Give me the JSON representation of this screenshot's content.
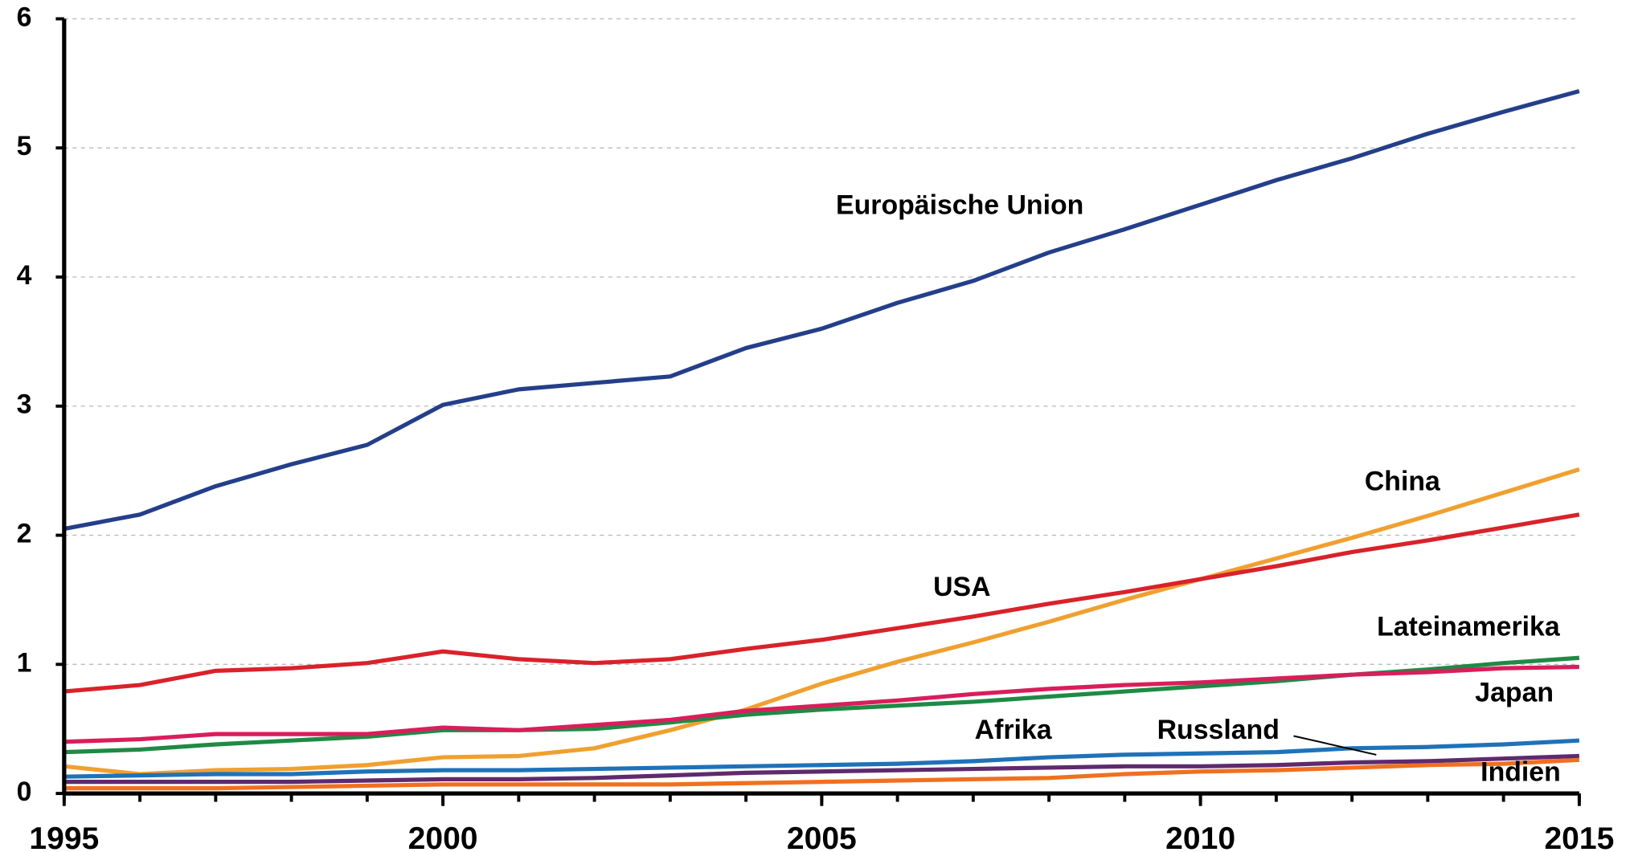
{
  "chart_data": {
    "type": "line",
    "x": [
      1995,
      1996,
      1997,
      1998,
      1999,
      2000,
      2001,
      2002,
      2003,
      2004,
      2005,
      2006,
      2007,
      2008,
      2009,
      2010,
      2011,
      2012,
      2013,
      2014,
      2015
    ],
    "xlim": [
      1995,
      2015
    ],
    "xticks": [
      1995,
      2000,
      2005,
      2010,
      2015
    ],
    "ylim": [
      0,
      6
    ],
    "yticks": [
      0,
      1,
      2,
      3,
      4,
      5,
      6
    ],
    "grid": true,
    "series": [
      {
        "name": "Europäische Union",
        "color": "#243f8a",
        "values": [
          2.05,
          2.16,
          2.38,
          2.55,
          2.7,
          3.01,
          3.13,
          3.18,
          3.23,
          3.45,
          3.6,
          3.8,
          3.97,
          4.19,
          4.37,
          4.56,
          4.75,
          4.92,
          5.11,
          5.28,
          5.44
        ]
      },
      {
        "name": "China",
        "color": "#f0a030",
        "values": [
          0.21,
          0.15,
          0.18,
          0.19,
          0.22,
          0.28,
          0.29,
          0.35,
          0.49,
          0.65,
          0.85,
          1.02,
          1.17,
          1.33,
          1.5,
          1.66,
          1.82,
          1.98,
          2.15,
          2.33,
          2.51
        ]
      },
      {
        "name": "USA",
        "color": "#d9222a",
        "values": [
          0.79,
          0.84,
          0.95,
          0.97,
          1.01,
          1.1,
          1.04,
          1.01,
          1.04,
          1.12,
          1.19,
          1.28,
          1.37,
          1.47,
          1.56,
          1.66,
          1.76,
          1.87,
          1.96,
          2.06,
          2.16
        ]
      },
      {
        "name": "Lateinamerika",
        "color": "#1f8a45",
        "values": [
          0.32,
          0.34,
          0.38,
          0.41,
          0.44,
          0.49,
          0.49,
          0.5,
          0.55,
          0.61,
          0.65,
          0.68,
          0.71,
          0.75,
          0.79,
          0.83,
          0.87,
          0.92,
          0.96,
          1.01,
          1.05
        ]
      },
      {
        "name": "Japan",
        "color": "#d81e5b",
        "values": [
          0.4,
          0.42,
          0.46,
          0.46,
          0.46,
          0.51,
          0.49,
          0.53,
          0.57,
          0.64,
          0.68,
          0.72,
          0.77,
          0.81,
          0.84,
          0.86,
          0.89,
          0.92,
          0.94,
          0.97,
          0.98
        ]
      },
      {
        "name": "Afrika",
        "color": "#1f72b8",
        "values": [
          0.13,
          0.14,
          0.15,
          0.15,
          0.17,
          0.18,
          0.18,
          0.19,
          0.2,
          0.21,
          0.22,
          0.23,
          0.25,
          0.28,
          0.3,
          0.31,
          0.32,
          0.35,
          0.36,
          0.38,
          0.41
        ]
      },
      {
        "name": "Russland",
        "color": "#5e2a6e",
        "values": [
          0.09,
          0.09,
          0.09,
          0.09,
          0.1,
          0.11,
          0.11,
          0.12,
          0.14,
          0.16,
          0.17,
          0.18,
          0.19,
          0.2,
          0.21,
          0.21,
          0.22,
          0.24,
          0.25,
          0.27,
          0.29
        ]
      },
      {
        "name": "Indien",
        "color": "#f07020",
        "values": [
          0.04,
          0.04,
          0.04,
          0.05,
          0.06,
          0.07,
          0.07,
          0.07,
          0.07,
          0.08,
          0.09,
          0.1,
          0.11,
          0.12,
          0.15,
          0.17,
          0.18,
          0.2,
          0.22,
          0.23,
          0.26
        ]
      }
    ]
  }
}
